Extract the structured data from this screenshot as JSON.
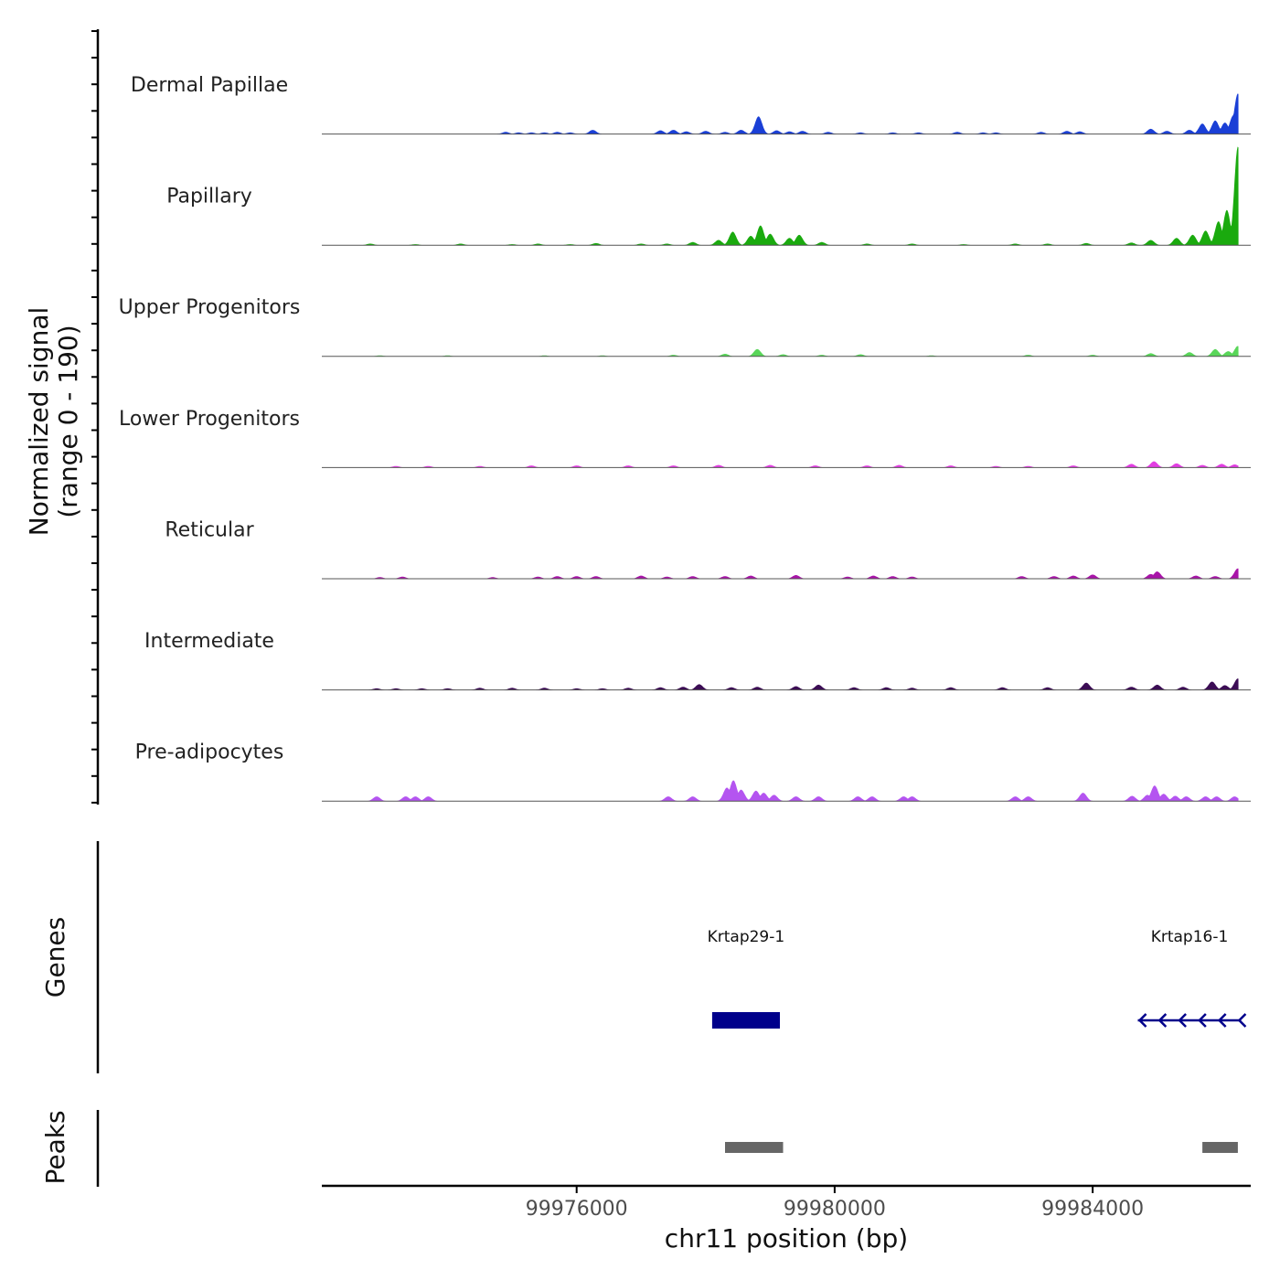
{
  "chart_data": {
    "type": "area",
    "title": "",
    "xlabel": "chr11 position (bp)",
    "ylabel": "Normalized signal\n(range 0 - 190)",
    "ylabel_lines": [
      "Normalized signal",
      "(range 0 - 190)"
    ],
    "y_range": [
      0,
      190
    ],
    "x_range": [
      99972050,
      99986450
    ],
    "x_ticks": [
      99976000,
      99980000,
      99984000
    ],
    "x_tick_labels": [
      "99976000",
      "99980000",
      "99984000"
    ],
    "tracks": [
      {
        "name": "Dermal Papillae",
        "color": "#1a3fd6",
        "peaks": [
          [
            99974900,
            4
          ],
          [
            99975100,
            3
          ],
          [
            99975300,
            3
          ],
          [
            99975500,
            3
          ],
          [
            99975700,
            4
          ],
          [
            99975900,
            3
          ],
          [
            99976250,
            8
          ],
          [
            99977300,
            7
          ],
          [
            99977500,
            8
          ],
          [
            99977700,
            5
          ],
          [
            99978000,
            6
          ],
          [
            99978300,
            4
          ],
          [
            99978550,
            8
          ],
          [
            99978820,
            34
          ],
          [
            99979100,
            7
          ],
          [
            99979300,
            5
          ],
          [
            99979500,
            6
          ],
          [
            99979900,
            4
          ],
          [
            99980400,
            3
          ],
          [
            99980900,
            3
          ],
          [
            99981300,
            3
          ],
          [
            99981900,
            4
          ],
          [
            99982300,
            3
          ],
          [
            99982500,
            3
          ],
          [
            99983200,
            4
          ],
          [
            99983600,
            6
          ],
          [
            99983800,
            5
          ],
          [
            99984900,
            10
          ],
          [
            99985150,
            6
          ],
          [
            99985500,
            8
          ],
          [
            99985700,
            20
          ],
          [
            99985900,
            26
          ],
          [
            99986050,
            22
          ],
          [
            99986180,
            36
          ],
          [
            99986250,
            78
          ]
        ]
      },
      {
        "name": "Papillary",
        "color": "#1aaa0e",
        "peaks": [
          [
            99972800,
            3
          ],
          [
            99973500,
            2
          ],
          [
            99974200,
            3
          ],
          [
            99975000,
            2
          ],
          [
            99975400,
            3
          ],
          [
            99975900,
            2
          ],
          [
            99976300,
            4
          ],
          [
            99977000,
            3
          ],
          [
            99977400,
            3
          ],
          [
            99977800,
            6
          ],
          [
            99978200,
            10
          ],
          [
            99978420,
            26
          ],
          [
            99978700,
            18
          ],
          [
            99978850,
            38
          ],
          [
            99979000,
            22
          ],
          [
            99979300,
            14
          ],
          [
            99979450,
            20
          ],
          [
            99979800,
            6
          ],
          [
            99980500,
            3
          ],
          [
            99981200,
            3
          ],
          [
            99982000,
            2
          ],
          [
            99982800,
            3
          ],
          [
            99983300,
            3
          ],
          [
            99983900,
            4
          ],
          [
            99984600,
            5
          ],
          [
            99984900,
            10
          ],
          [
            99985300,
            14
          ],
          [
            99985550,
            20
          ],
          [
            99985750,
            28
          ],
          [
            99985950,
            46
          ],
          [
            99986080,
            68
          ],
          [
            99986180,
            40
          ],
          [
            99986250,
            190
          ]
        ]
      },
      {
        "name": "Upper Progenitors",
        "color": "#59d659",
        "peaks": [
          [
            99972950,
            2
          ],
          [
            99974000,
            2
          ],
          [
            99975500,
            2
          ],
          [
            99976400,
            2
          ],
          [
            99977500,
            3
          ],
          [
            99978300,
            5
          ],
          [
            99978800,
            14
          ],
          [
            99979200,
            4
          ],
          [
            99979800,
            3
          ],
          [
            99980400,
            4
          ],
          [
            99981500,
            2
          ],
          [
            99983000,
            3
          ],
          [
            99984000,
            3
          ],
          [
            99984900,
            6
          ],
          [
            99985500,
            8
          ],
          [
            99985900,
            14
          ],
          [
            99986100,
            10
          ],
          [
            99986250,
            20
          ]
        ]
      },
      {
        "name": "Lower Progenitors",
        "color": "#e23ee2",
        "peaks": [
          [
            99973200,
            3
          ],
          [
            99973700,
            3
          ],
          [
            99974500,
            3
          ],
          [
            99975300,
            4
          ],
          [
            99976000,
            4
          ],
          [
            99976800,
            4
          ],
          [
            99977500,
            4
          ],
          [
            99978200,
            5
          ],
          [
            99979000,
            5
          ],
          [
            99979700,
            4
          ],
          [
            99980500,
            4
          ],
          [
            99981000,
            5
          ],
          [
            99981800,
            4
          ],
          [
            99982500,
            3
          ],
          [
            99983000,
            3
          ],
          [
            99983700,
            4
          ],
          [
            99984600,
            7
          ],
          [
            99984950,
            12
          ],
          [
            99985300,
            8
          ],
          [
            99985700,
            5
          ],
          [
            99986000,
            7
          ],
          [
            99986200,
            6
          ]
        ]
      },
      {
        "name": "Reticular",
        "color": "#a814a8",
        "peaks": [
          [
            99972950,
            3
          ],
          [
            99973300,
            4
          ],
          [
            99974700,
            3
          ],
          [
            99975400,
            4
          ],
          [
            99975700,
            5
          ],
          [
            99976000,
            5
          ],
          [
            99976300,
            5
          ],
          [
            99977000,
            6
          ],
          [
            99977400,
            4
          ],
          [
            99977800,
            5
          ],
          [
            99978300,
            5
          ],
          [
            99978700,
            6
          ],
          [
            99979400,
            7
          ],
          [
            99980200,
            4
          ],
          [
            99980600,
            6
          ],
          [
            99980900,
            5
          ],
          [
            99981200,
            4
          ],
          [
            99982900,
            5
          ],
          [
            99983400,
            5
          ],
          [
            99983700,
            6
          ],
          [
            99984000,
            8
          ],
          [
            99984900,
            9
          ],
          [
            99985000,
            14
          ],
          [
            99985600,
            6
          ],
          [
            99985900,
            5
          ],
          [
            99986250,
            20
          ]
        ]
      },
      {
        "name": "Intermediate",
        "color": "#3c0d55",
        "peaks": [
          [
            99972900,
            3
          ],
          [
            99973200,
            3
          ],
          [
            99973600,
            3
          ],
          [
            99974000,
            3
          ],
          [
            99974500,
            4
          ],
          [
            99975000,
            4
          ],
          [
            99975500,
            4
          ],
          [
            99976000,
            3
          ],
          [
            99976400,
            3
          ],
          [
            99976800,
            4
          ],
          [
            99977300,
            5
          ],
          [
            99977650,
            6
          ],
          [
            99977900,
            11
          ],
          [
            99978400,
            5
          ],
          [
            99978800,
            6
          ],
          [
            99979400,
            7
          ],
          [
            99979750,
            10
          ],
          [
            99980300,
            5
          ],
          [
            99980800,
            5
          ],
          [
            99981200,
            4
          ],
          [
            99981800,
            5
          ],
          [
            99982600,
            5
          ],
          [
            99983300,
            5
          ],
          [
            99983900,
            14
          ],
          [
            99984600,
            6
          ],
          [
            99985000,
            10
          ],
          [
            99985400,
            6
          ],
          [
            99985850,
            16
          ],
          [
            99986050,
            9
          ],
          [
            99986250,
            22
          ]
        ]
      },
      {
        "name": "Pre-adipocytes",
        "color": "#b454f0",
        "peaks": [
          [
            99972900,
            9
          ],
          [
            99973350,
            9
          ],
          [
            99973500,
            9
          ],
          [
            99973700,
            9
          ],
          [
            99977420,
            9
          ],
          [
            99977800,
            9
          ],
          [
            99978330,
            26
          ],
          [
            99978430,
            40
          ],
          [
            99978550,
            22
          ],
          [
            99978780,
            20
          ],
          [
            99978900,
            16
          ],
          [
            99979060,
            12
          ],
          [
            99979400,
            9
          ],
          [
            99979750,
            9
          ],
          [
            99980360,
            9
          ],
          [
            99980580,
            9
          ],
          [
            99981070,
            9
          ],
          [
            99981200,
            9
          ],
          [
            99982800,
            9
          ],
          [
            99983000,
            9
          ],
          [
            99983850,
            16
          ],
          [
            99984610,
            10
          ],
          [
            99984850,
            12
          ],
          [
            99984960,
            30
          ],
          [
            99985100,
            14
          ],
          [
            99985280,
            10
          ],
          [
            99985450,
            9
          ],
          [
            99985750,
            9
          ],
          [
            99985920,
            9
          ],
          [
            99986200,
            9
          ]
        ]
      }
    ],
    "genes": [
      {
        "name": "Krtap29-1",
        "start": 99978100,
        "end": 99979150,
        "strand": "+",
        "type": "box",
        "color": "#00008b"
      },
      {
        "name": "Krtap16-1",
        "start": 99984700,
        "end": 99986300,
        "strand": "-",
        "type": "arrow",
        "color": "#00008b"
      }
    ],
    "peaks_track": [
      {
        "start": 99978300,
        "end": 99979200
      },
      {
        "start": 99985700,
        "end": 99986250
      }
    ],
    "panel_labels": {
      "genes": "Genes",
      "peaks": "Peaks"
    },
    "peak_color": "#666666"
  }
}
